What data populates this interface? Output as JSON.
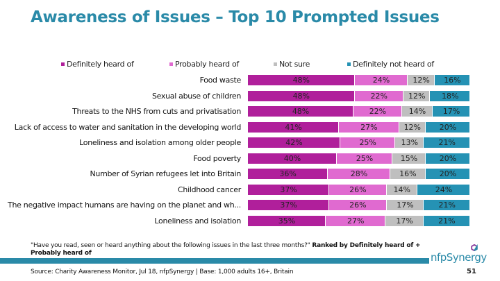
{
  "title": "Awareness of Issues – Top 10 Prompted Issues",
  "chart_data": {
    "type": "bar",
    "orientation": "horizontal",
    "stacked": true,
    "percent": true,
    "title": "Awareness of Issues – Top 10 Prompted Issues",
    "xlabel": "",
    "ylabel": "",
    "xlim": [
      0,
      100
    ],
    "grid": false,
    "legend_position": "top",
    "categories": [
      "Food waste",
      "Sexual abuse of children",
      "Threats to the NHS from cuts and privatisation",
      "Lack of access to water and sanitation in the developing world",
      "Loneliness and isolation among older people",
      "Food poverty",
      "Number of Syrian refugees let into Britain",
      "Childhood cancer",
      "The negative impact humans are having on the planet and wh...",
      "Loneliness and isolation"
    ],
    "series": [
      {
        "name": "Definitely heard of",
        "color": "#b01f9b",
        "values": [
          48,
          48,
          48,
          41,
          42,
          40,
          36,
          37,
          37,
          35
        ]
      },
      {
        "name": "Probably heard of",
        "color": "#e06ad0",
        "values": [
          24,
          22,
          22,
          27,
          25,
          25,
          28,
          26,
          26,
          27
        ]
      },
      {
        "name": "Not sure",
        "color": "#bfbfbf",
        "values": [
          12,
          12,
          14,
          12,
          13,
          15,
          16,
          14,
          17,
          17
        ]
      },
      {
        "name": "Definitely not heard of",
        "color": "#2592b4",
        "values": [
          16,
          18,
          17,
          20,
          21,
          20,
          20,
          24,
          21,
          21
        ]
      }
    ],
    "data_labels": true,
    "label_suffix": "%"
  },
  "footnote": {
    "question": "\"Have you read, seen or heard anything about the following issues in the last three months?\"",
    "ranking": "Ranked by Definitely heard of + Probably heard of"
  },
  "source": "Source: Charity Awareness Monitor, Jul 18, nfpSynergy | Base: 1,000 adults 16+, Britain",
  "logo": "nfpSynergy",
  "page_number": "51"
}
